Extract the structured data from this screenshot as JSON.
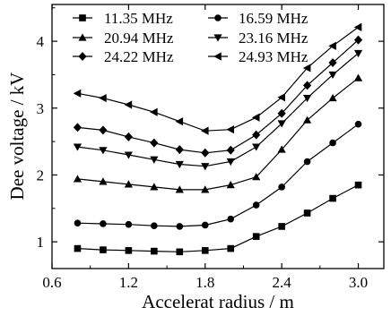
{
  "chart_data": {
    "type": "line",
    "title": "",
    "xlabel": "Accelerat radius / m",
    "ylabel": "Dee voltage / kV",
    "xlim": [
      0.6,
      3.2
    ],
    "ylim": [
      0.6,
      4.55
    ],
    "xticks": [
      "0.6",
      "1.2",
      "1.8",
      "2.4",
      "3.0"
    ],
    "yticks": [
      "1",
      "2",
      "3",
      "4"
    ],
    "grid": false,
    "legend_position": "top-left",
    "x": [
      0.8,
      1.0,
      1.2,
      1.4,
      1.6,
      1.8,
      2.0,
      2.2,
      2.4,
      2.6,
      2.8,
      3.0
    ],
    "series": [
      {
        "name": "11.35 MHz",
        "marker": "square",
        "values": [
          0.9,
          0.88,
          0.87,
          0.86,
          0.85,
          0.87,
          0.9,
          1.08,
          1.23,
          1.43,
          1.65,
          1.85
        ]
      },
      {
        "name": "16.59 MHz",
        "marker": "circle",
        "values": [
          1.28,
          1.27,
          1.26,
          1.24,
          1.23,
          1.25,
          1.34,
          1.55,
          1.82,
          2.2,
          2.48,
          2.76
        ]
      },
      {
        "name": "20.94 MHz",
        "marker": "triangle-up",
        "values": [
          1.94,
          1.9,
          1.86,
          1.82,
          1.78,
          1.78,
          1.85,
          1.97,
          2.38,
          2.82,
          3.15,
          3.45
        ]
      },
      {
        "name": "23.16 MHz",
        "marker": "triangle-down",
        "values": [
          2.42,
          2.37,
          2.3,
          2.23,
          2.16,
          2.13,
          2.2,
          2.42,
          2.77,
          3.15,
          3.5,
          3.82
        ]
      },
      {
        "name": "24.22 MHz",
        "marker": "diamond",
        "values": [
          2.71,
          2.67,
          2.57,
          2.48,
          2.38,
          2.33,
          2.37,
          2.6,
          2.92,
          3.34,
          3.68,
          4.02
        ]
      },
      {
        "name": "24.93 MHz",
        "marker": "triangle-left",
        "values": [
          3.22,
          3.15,
          3.05,
          2.94,
          2.8,
          2.66,
          2.68,
          2.86,
          3.16,
          3.6,
          3.93,
          4.21
        ]
      }
    ]
  }
}
